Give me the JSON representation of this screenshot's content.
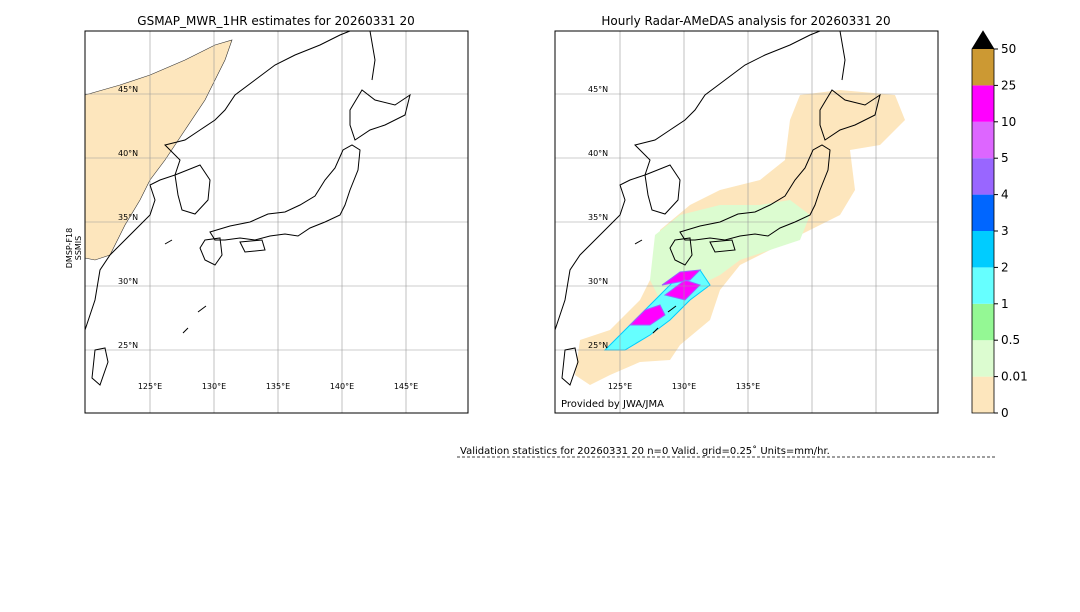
{
  "left_map": {
    "title": "GSMAP_MWR_1HR estimates for 20260331 20",
    "side_label": [
      "DMSP-F18",
      "SSMIS"
    ],
    "lat_labels": [
      "45°N",
      "40°N",
      "35°N",
      "30°N",
      "25°N"
    ],
    "lon_labels": [
      "125°E",
      "130°E",
      "135°E",
      "140°E",
      "145°E"
    ]
  },
  "right_map": {
    "title": "Hourly Radar-AMeDAS analysis for 20260331 20",
    "credit": "Provided by JWA/JMA",
    "lat_labels": [
      "45°N",
      "40°N",
      "35°N",
      "30°N",
      "25°N"
    ],
    "lon_labels": [
      "125°E",
      "130°E",
      "135°E"
    ]
  },
  "colorbar": {
    "levels": [
      0,
      0.01,
      0.5,
      1,
      2,
      3,
      4,
      5,
      10,
      25,
      50
    ],
    "colors": [
      "#fde6bd",
      "#dcfcd0",
      "#94f894",
      "#66ffff",
      "#00ccff",
      "#0066ff",
      "#9966ff",
      "#dd66ff",
      "#ff00ff",
      "#cc9933"
    ],
    "extend_color": "#000000"
  },
  "validation": "Validation statistics for 20260331 20  n=0 Valid. grid=0.25˚ Units=mm/hr."
}
